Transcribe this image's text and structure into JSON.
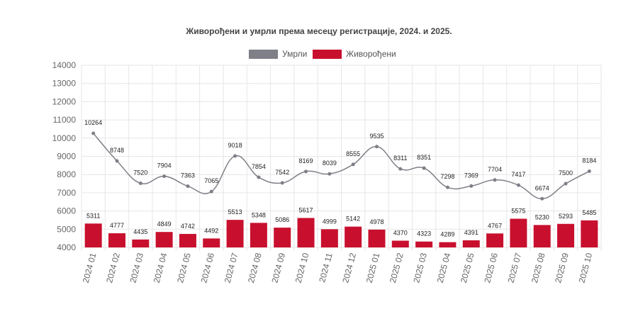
{
  "chart_data": {
    "type": "bar+line",
    "title": "Живорођени и умрли  према месецу регистрације, 2024. и 2025.",
    "categories": [
      "2024 01",
      "2024 02",
      "2024 03",
      "2024 04",
      "2024 05",
      "2024 06",
      "2024 07",
      "2024 08",
      "2024 09",
      "2024 10",
      "2024 11",
      "2024 12",
      "2025 01",
      "2025 02",
      "2025 03",
      "2025 04",
      "2025 05",
      "2025 06",
      "2025 07",
      "2025 08",
      "2025 09",
      "2025 10"
    ],
    "series": [
      {
        "name": "Умрли",
        "type": "line",
        "color": "#7f7f87",
        "values": [
          10264,
          8748,
          7520,
          7904,
          7363,
          7065,
          9018,
          7854,
          7542,
          8169,
          8039,
          8555,
          9535,
          8311,
          8351,
          7298,
          7369,
          7704,
          7417,
          6674,
          7500,
          8184
        ]
      },
      {
        "name": "Живорођени",
        "type": "bar",
        "color": "#c8102e",
        "values": [
          5311,
          4777,
          4435,
          4849,
          4742,
          4492,
          5513,
          5348,
          5086,
          5617,
          4999,
          5142,
          4978,
          4370,
          4323,
          4289,
          4391,
          4767,
          5575,
          5230,
          5293,
          5485
        ]
      }
    ],
    "ylim": [
      4000,
      14000
    ],
    "yticks": [
      4000,
      5000,
      6000,
      7000,
      8000,
      9000,
      10000,
      11000,
      12000,
      13000,
      14000
    ],
    "xlabel": "",
    "ylabel": "",
    "grid": true,
    "legend_position": "top-center"
  }
}
